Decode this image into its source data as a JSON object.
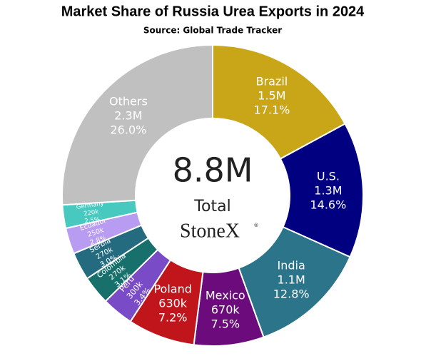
{
  "chart_data": {
    "type": "donut",
    "title": "Market Share of Russia Urea Exports in 2024",
    "subtitle": "Source: Global Trade Tracker",
    "center_value": "8.8M",
    "center_label": "Total",
    "brand": "StoneX",
    "brand_mark": "®",
    "categories": [
      "Brazil",
      "U.S.",
      "India",
      "Mexico",
      "Poland",
      "Peru",
      "Colombia",
      "Serbia",
      "Ecuador",
      "Germany",
      "Others"
    ],
    "values": [
      17.1,
      14.6,
      12.8,
      7.5,
      7.2,
      3.4,
      3.1,
      3.0,
      2.8,
      2.5,
      26.0
    ],
    "value_labels": [
      "17.1%",
      "14.6%",
      "12.8%",
      "7.5%",
      "7.2%",
      "3.4%",
      "3.1%",
      "3.0%",
      "2.8%",
      "2.5%",
      "26.0%"
    ],
    "volume_labels": [
      "1.5M",
      "1.3M",
      "1.1M",
      "670k",
      "630k",
      "300k",
      "270k",
      "270k",
      "250k",
      "220k",
      "2.3M"
    ],
    "colors": [
      "#c9a617",
      "#000080",
      "#2b7489",
      "#6b0b7c",
      "#c0151b",
      "#7a4bc6",
      "#17706b",
      "#256b80",
      "#b89cf2",
      "#47c9c0",
      "#c0c0c0"
    ]
  }
}
